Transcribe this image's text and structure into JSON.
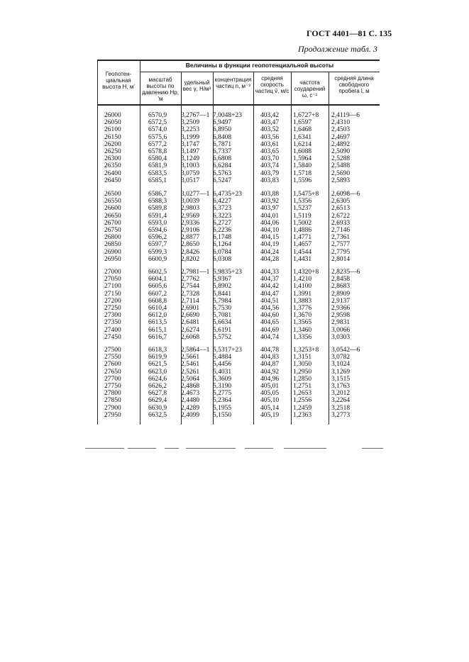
{
  "page_header": "ГОСТ 4401—81 С. 135",
  "continuation": "Продолжение табл. 3",
  "table": {
    "group_header": "Величины в функции геопотенциальной высоты",
    "columns": [
      "Геопотен-циальная высота H, м'",
      "масштаб высоты по давлению Hp, 'м",
      "удельный вес γ, Н/м³",
      "концентрация частиц n, м⁻³",
      "средняя скорость частиц v̄, м/с",
      "частота соударений ω, с⁻¹",
      "средняя длина свободного пробега l, м"
    ],
    "blocks": [
      [
        [
          "26000",
          "6570,9",
          "3,2767—1",
          "7,0048+23",
          "403,42",
          "1,6727+8",
          "2,4119—6"
        ],
        [
          "26050",
          "6572,5",
          "3,2509",
          "6,9497",
          "403,47",
          "1,6597",
          "2,4310"
        ],
        [
          "26100",
          "6574,0",
          "3,2253",
          "6,8950",
          "403,52",
          "1,6468",
          "2,4503"
        ],
        [
          "26150",
          "6575,6",
          "3,1999",
          "6,8408",
          "403,56",
          "1,6341",
          "2,4697"
        ],
        [
          "26200",
          "6577,2",
          "3,1747",
          "6,7871",
          "403,61",
          "1,6214",
          "2,4892"
        ],
        [
          "26250",
          "6578,8",
          "3,1497",
          "6,7337",
          "403,65",
          "1,6088",
          "2,5090"
        ],
        [
          "26300",
          "6580,4",
          "3,1249",
          "6,6808",
          "403,70",
          "1,5964",
          "2,5288"
        ],
        [
          "26350",
          "6581,9",
          "3,1003",
          "6,6284",
          "403,74",
          "1,5840",
          "2,5488"
        ],
        [
          "26400",
          "6583,5",
          "3,0759",
          "6,5763",
          "403,79",
          "1,5718",
          "2,5690"
        ],
        [
          "26450",
          "6585,1",
          "3,0517",
          "6,5247",
          "403,83",
          "1,5596",
          "2,5893"
        ]
      ],
      [
        [
          "26500",
          "6586,7",
          "3,0277—1",
          "6,4735+23",
          "403,88",
          "1,5475+8",
          "2,6098—6"
        ],
        [
          "26550",
          "6588,3",
          "3,0039",
          "6,4227",
          "403,92",
          "1,5356",
          "2,6305"
        ],
        [
          "26600",
          "6589,8",
          "2,9803",
          "6,3723",
          "403,97",
          "1,5237",
          "2,6513"
        ],
        [
          "26650",
          "6591,4",
          "2,9569",
          "6,3223",
          "404,01",
          "1,5119",
          "2,6722"
        ],
        [
          "26700",
          "6593,0",
          "2,9336",
          "6,2727",
          "404,06",
          "1,5002",
          "2,6933"
        ],
        [
          "26750",
          "6594,6",
          "2,9106",
          "6,2236",
          "404,10",
          "1,4886",
          "2,7146"
        ],
        [
          "26800",
          "6596,2",
          "2,8877",
          "6,1748",
          "404,15",
          "1,4771",
          "2,7361"
        ],
        [
          "26850",
          "6597,7",
          "2,8650",
          "6,1264",
          "404,19",
          "1,4657",
          "2,7577"
        ],
        [
          "26900",
          "6599,3",
          "2,8426",
          "6,0784",
          "404,24",
          "1,4544",
          "2,7795"
        ],
        [
          "26950",
          "6600,9",
          "2,8202",
          "6,0308",
          "404,28",
          "1,4431",
          "2,8014"
        ]
      ],
      [
        [
          "27000",
          "6602,5",
          "2,7981—1",
          "5,9835+23",
          "404,33",
          "1,4320+8",
          "2,8235—6"
        ],
        [
          "27050",
          "6604,1",
          "2,7762",
          "5,9367",
          "404,37",
          "1,4210",
          "2,8458"
        ],
        [
          "27100",
          "6605,6",
          "2,7544",
          "5,8902",
          "404,42",
          "1,4100",
          "2,8683"
        ],
        [
          "27150",
          "6607,2",
          "2,7328",
          "5,8441",
          "404,47",
          "1,3991",
          "2,8909"
        ],
        [
          "27200",
          "6608,8",
          "2,7114",
          "5,7984",
          "404,51",
          "1,3883",
          "2,9137"
        ],
        [
          "27250",
          "6610,4",
          "2,6901",
          "5,7530",
          "404,56",
          "1,3776",
          "2,9366"
        ],
        [
          "27300",
          "6612,0",
          "2,6690",
          "5,7081",
          "404,60",
          "1,3670",
          "2,9598"
        ],
        [
          "27350",
          "6613,5",
          "2,6481",
          "5,6634",
          "404,65",
          "1,3565",
          "2,9831"
        ],
        [
          "27400",
          "6615,1",
          "2,6274",
          "5,6191",
          "404,69",
          "1,3460",
          "3,0066"
        ],
        [
          "27450",
          "6616,7",
          "2,6068",
          "5,5752",
          "404,74",
          "1,3356",
          "3,0303"
        ]
      ],
      [
        [
          "27500",
          "6618,3",
          "2,5864—1",
          "5,5317+23",
          "404,78",
          "1,3253+8",
          "3,0542—6"
        ],
        [
          "27550",
          "6619,9",
          "2,5661",
          "5,4884",
          "404,83",
          "1,3151",
          "3,0782"
        ],
        [
          "27600",
          "6621,5",
          "2,5461",
          "5,4456",
          "404,87",
          "1,3050",
          "3,1024"
        ],
        [
          "27650",
          "6623,0",
          "2,5261",
          "5,4031",
          "404,92",
          "1,2950",
          "3,1269"
        ],
        [
          "27700",
          "6624,6",
          "2,5064",
          "5,3609",
          "404,96",
          "1,2850",
          "3,1515"
        ],
        [
          "27750",
          "6626,2",
          "2,4868",
          "5,3190",
          "405,01",
          "1,2751",
          "3,1763"
        ],
        [
          "27800",
          "6627,8",
          "2,4673",
          "5,2775",
          "405,05",
          "1,2653",
          "3,2012"
        ],
        [
          "27850",
          "6629,4",
          "2,4480",
          "5,2364",
          "405,10",
          "1,2556",
          "3,2264"
        ],
        [
          "27900",
          "6630,9",
          "2,4289",
          "5,1955",
          "405,14",
          "1,2459",
          "3,2518"
        ],
        [
          "27950",
          "6632,5",
          "2,4099",
          "5,1550",
          "405,19",
          "1,2363",
          "3,2773"
        ]
      ]
    ]
  }
}
